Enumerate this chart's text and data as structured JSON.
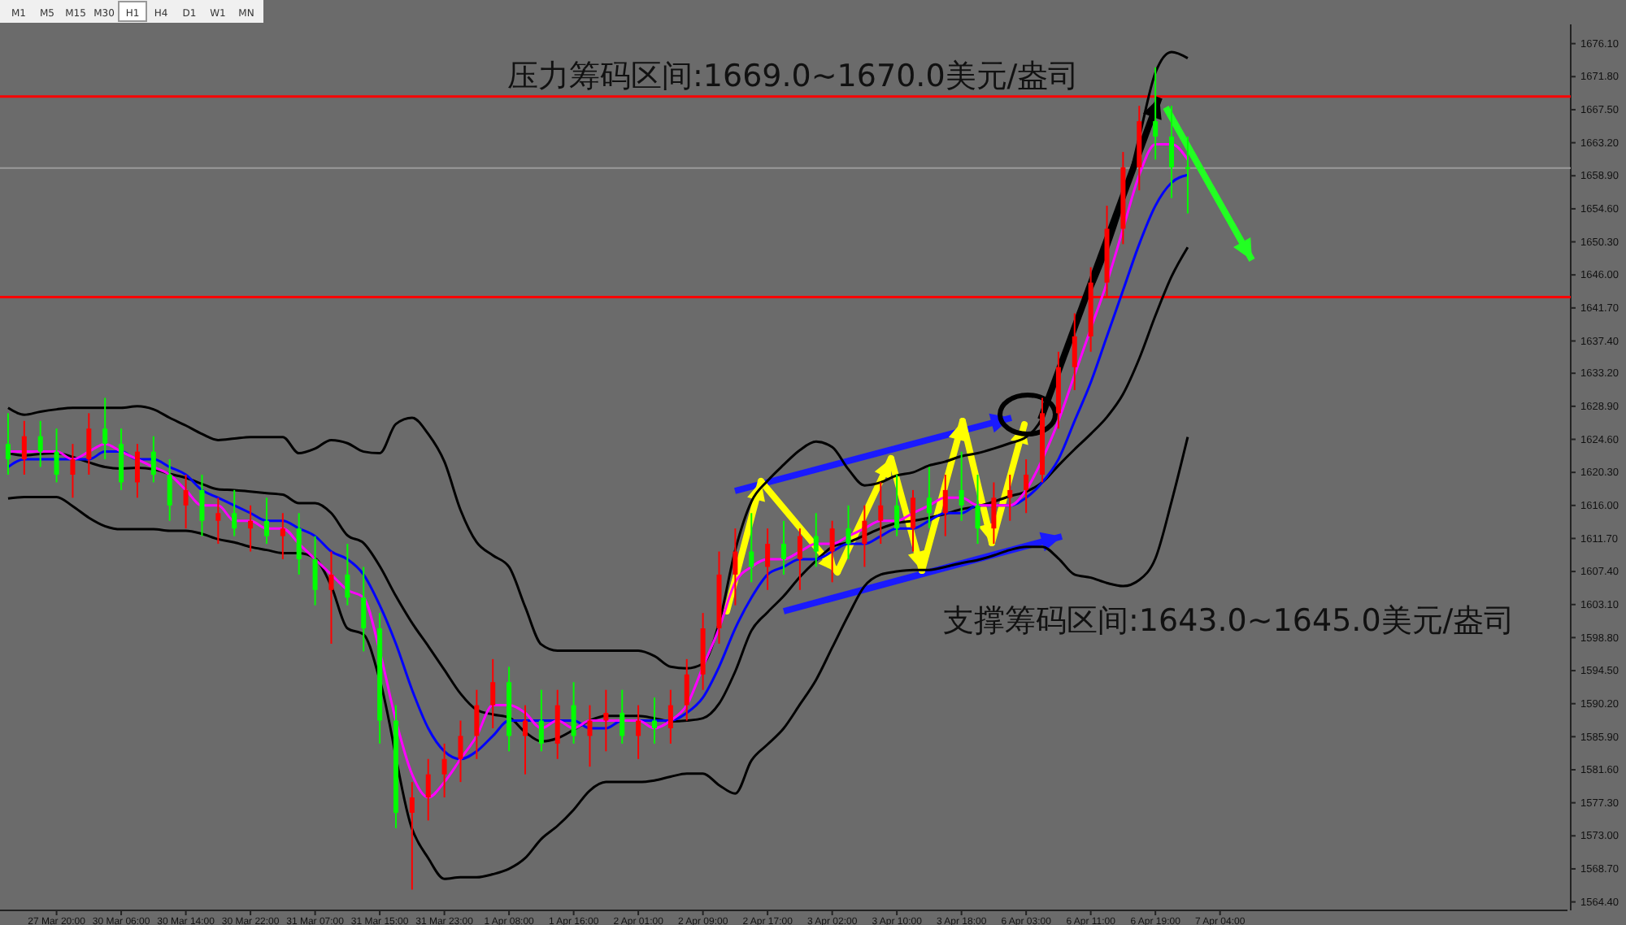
{
  "chart_data": {
    "type": "candlestick",
    "categories": [
      null,
      null,
      null,
      "27 Mar 20:00",
      null,
      null,
      null,
      "30 Mar 06:00",
      null,
      null,
      null,
      "30 Mar 14:00",
      null,
      null,
      null,
      "30 Mar 22:00",
      null,
      null,
      null,
      "31 Mar 07:00",
      null,
      null,
      null,
      "31 Mar 15:00",
      null,
      null,
      null,
      "31 Mar 23:00",
      null,
      null,
      null,
      "1 Apr 08:00",
      null,
      null,
      null,
      "1 Apr 16:00",
      null,
      null,
      null,
      "2 Apr 01:00",
      null,
      null,
      null,
      "2 Apr 09:00",
      null,
      null,
      null,
      "2 Apr 17:00",
      null,
      null,
      null,
      "3 Apr 02:00",
      null,
      null,
      null,
      "3 Apr 10:00",
      null,
      null,
      null,
      "3 Apr 18:00",
      null,
      null,
      null,
      "6 Apr 03:00",
      null,
      null,
      null,
      "6 Apr 11:00",
      null,
      null,
      null,
      "6 Apr 19:00",
      null,
      null,
      null,
      "7 Apr 04:00",
      null,
      null,
      null,
      null,
      null,
      null,
      null,
      null,
      null,
      null,
      null,
      null,
      null,
      null,
      null,
      null,
      null,
      null,
      null,
      null,
      null
    ],
    "ohlc": [
      [
        1624,
        1628,
        1620,
        1622
      ],
      [
        1622,
        1627,
        1620,
        1625
      ],
      [
        1625,
        1627,
        1621,
        1623
      ],
      [
        1623,
        1626,
        1619,
        1620
      ],
      [
        1620,
        1624,
        1617,
        1622
      ],
      [
        1622,
        1628,
        1620,
        1626
      ],
      [
        1626,
        1630,
        1622,
        1624
      ],
      [
        1624,
        1626,
        1618,
        1619
      ],
      [
        1619,
        1624,
        1617,
        1623
      ],
      [
        1623,
        1625,
        1619,
        1620
      ],
      [
        1620,
        1622,
        1614,
        1616
      ],
      [
        1616,
        1620,
        1613,
        1618
      ],
      [
        1618,
        1620,
        1612,
        1614
      ],
      [
        1614,
        1617,
        1611,
        1615
      ],
      [
        1615,
        1618,
        1612,
        1613
      ],
      [
        1613,
        1616,
        1610,
        1614
      ],
      [
        1614,
        1617,
        1611,
        1612
      ],
      [
        1612,
        1615,
        1609,
        1613
      ],
      [
        1613,
        1615,
        1607,
        1609
      ],
      [
        1609,
        1612,
        1603,
        1605
      ],
      [
        1605,
        1610,
        1598,
        1607
      ],
      [
        1607,
        1611,
        1603,
        1604
      ],
      [
        1604,
        1608,
        1597,
        1600
      ],
      [
        1600,
        1602,
        1585,
        1588
      ],
      [
        1588,
        1590,
        1574,
        1576
      ],
      [
        1576,
        1580,
        1566,
        1578
      ],
      [
        1578,
        1583,
        1575,
        1581
      ],
      [
        1581,
        1585,
        1578,
        1583
      ],
      [
        1583,
        1588,
        1580,
        1586
      ],
      [
        1586,
        1592,
        1583,
        1590
      ],
      [
        1590,
        1596,
        1587,
        1593
      ],
      [
        1593,
        1595,
        1584,
        1586
      ],
      [
        1586,
        1590,
        1581,
        1588
      ],
      [
        1588,
        1592,
        1584,
        1585
      ],
      [
        1585,
        1592,
        1583,
        1590
      ],
      [
        1590,
        1593,
        1585,
        1586
      ],
      [
        1586,
        1590,
        1582,
        1588
      ],
      [
        1588,
        1592,
        1584,
        1589
      ],
      [
        1589,
        1592,
        1585,
        1586
      ],
      [
        1586,
        1590,
        1583,
        1588
      ],
      [
        1588,
        1591,
        1585,
        1587
      ],
      [
        1587,
        1592,
        1585,
        1590
      ],
      [
        1590,
        1596,
        1588,
        1594
      ],
      [
        1594,
        1602,
        1592,
        1600
      ],
      [
        1600,
        1610,
        1598,
        1607
      ],
      [
        1607,
        1613,
        1603,
        1610
      ],
      [
        1610,
        1615,
        1606,
        1608
      ],
      [
        1608,
        1613,
        1605,
        1611
      ],
      [
        1611,
        1614,
        1607,
        1609
      ],
      [
        1609,
        1613,
        1605,
        1612
      ],
      [
        1612,
        1615,
        1608,
        1610
      ],
      [
        1610,
        1614,
        1606,
        1613
      ],
      [
        1613,
        1616,
        1609,
        1611
      ],
      [
        1611,
        1616,
        1608,
        1614
      ],
      [
        1614,
        1619,
        1611,
        1616
      ],
      [
        1616,
        1620,
        1612,
        1613
      ],
      [
        1613,
        1618,
        1610,
        1617
      ],
      [
        1617,
        1621,
        1613,
        1615
      ],
      [
        1615,
        1620,
        1612,
        1618
      ],
      [
        1618,
        1623,
        1614,
        1616
      ],
      [
        1616,
        1620,
        1611,
        1613
      ],
      [
        1613,
        1619,
        1611,
        1617
      ],
      [
        1617,
        1620,
        1614,
        1618
      ],
      [
        1618,
        1622,
        1615,
        1620
      ],
      [
        1620,
        1630,
        1619,
        1628
      ],
      [
        1628,
        1636,
        1626,
        1634
      ],
      [
        1634,
        1641,
        1631,
        1638
      ],
      [
        1638,
        1647,
        1636,
        1645
      ],
      [
        1645,
        1655,
        1643,
        1652
      ],
      [
        1652,
        1662,
        1650,
        1660
      ],
      [
        1660,
        1668,
        1657,
        1666
      ],
      [
        1666,
        1673,
        1661,
        1664
      ],
      [
        1664,
        1668,
        1656,
        1660
      ],
      [
        1660,
        1664,
        1654,
        1659.9
      ],
      null,
      null,
      null,
      null,
      null,
      null,
      null,
      null,
      null,
      null,
      null,
      null,
      null,
      null,
      null,
      null,
      null,
      null,
      null,
      null,
      null,
      null,
      null
    ],
    "colors": [
      "#00ff00",
      "#ff0000",
      "#00ff00",
      "#00ff00",
      "#ff0000",
      "#ff0000",
      "#00ff00",
      "#00ff00",
      "#ff0000",
      "#00ff00",
      "#00ff00",
      "#ff0000",
      "#00ff00",
      "#ff0000",
      "#00ff00",
      "#ff0000",
      "#00ff00",
      "#ff0000",
      "#00ff00",
      "#00ff00",
      "#ff0000",
      "#00ff00",
      "#00ff00",
      "#00ff00",
      "#00ff00",
      "#ff0000",
      "#ff0000",
      "#ff0000",
      "#ff0000",
      "#ff0000",
      "#ff0000",
      "#00ff00",
      "#ff0000",
      "#00ff00",
      "#ff0000",
      "#00ff00",
      "#ff0000",
      "#ff0000",
      "#00ff00",
      "#ff0000",
      "#00ff00",
      "#ff0000",
      "#ff0000",
      "#ff0000",
      "#ff0000",
      "#ff0000",
      "#00ff00",
      "#ff0000",
      "#00ff00",
      "#ff0000",
      "#00ff00",
      "#ff0000",
      "#00ff00",
      "#ff0000",
      "#ff0000",
      "#00ff00",
      "#ff0000",
      "#00ff00",
      "#ff0000",
      "#00ff00",
      "#00ff00",
      "#ff0000",
      "#ff0000",
      "#ff0000",
      "#ff0000",
      "#ff0000",
      "#ff0000",
      "#ff0000",
      "#ff0000",
      "#ff0000",
      "#ff0000",
      "#00ff00",
      "#00ff00",
      "#00ff00",
      null,
      null,
      null,
      null,
      null,
      null,
      null,
      null,
      null,
      null,
      null,
      null,
      null,
      null,
      null,
      null,
      null,
      null,
      null,
      null,
      null,
      null,
      null
    ],
    "series": [
      {
        "type": "line",
        "color": "#000000",
        "values": [
          1628.7,
          1627.8,
          1628.2,
          1628.5,
          1628.7,
          1628.7,
          1628.7,
          1628.7,
          1628.9,
          1628.5,
          1627.4,
          1626.4,
          1625.3,
          1624.5,
          1624.7,
          1624.9,
          1624.9,
          1624.9,
          1622.8,
          1623.4,
          1624.5,
          1624.1,
          1623.0,
          1622.8,
          1626.6,
          1627.4,
          1625.3,
          1621.7,
          1615.4,
          1611.2,
          1609.5,
          1608.0,
          1602.8,
          1597.9,
          1597.1,
          1597.1,
          1597.1,
          1597.1,
          1597.1,
          1597.1,
          1596.4,
          1595.0,
          1594.8,
          1595.4,
          1600.7,
          1610.2,
          1616.5,
          1619.2,
          1621.3,
          1623.2,
          1624.3,
          1623.6,
          1620.7,
          1618.6,
          1619.0,
          1619.9,
          1620.3,
          1621.2,
          1621.7,
          1622.4,
          1622.8,
          1623.4,
          1624.1,
          1624.9,
          1627.4,
          1633.3,
          1639.6,
          1643.9,
          1649.1,
          1655.5,
          1663.9,
          1672.3,
          1675.0,
          1674.2,
          null,
          null,
          null,
          null,
          null,
          null,
          null,
          null,
          null,
          null,
          null,
          null,
          null,
          null,
          null,
          null,
          null,
          null,
          null,
          null,
          null,
          null,
          null
        ]
      },
      {
        "type": "line",
        "color": "#000000",
        "values": [
          1622.8,
          1622.5,
          1622.7,
          1622.8,
          1622.3,
          1621.6,
          1621.0,
          1620.8,
          1620.9,
          1620.7,
          1620.1,
          1619.6,
          1618.8,
          1618.1,
          1618.0,
          1617.8,
          1617.6,
          1617.4,
          1616.3,
          1616.3,
          1615.0,
          1612.1,
          1611.1,
          1608.1,
          1604.2,
          1600.7,
          1597.7,
          1594.6,
          1591.5,
          1589.4,
          1588.8,
          1588.4,
          1586.5,
          1585.3,
          1585.7,
          1586.8,
          1588.0,
          1588.6,
          1588.6,
          1588.6,
          1588.3,
          1587.9,
          1588.0,
          1588.3,
          1590.2,
          1594.4,
          1599.7,
          1602.1,
          1604.2,
          1606.7,
          1608.8,
          1610.6,
          1611.2,
          1612.1,
          1613.0,
          1613.7,
          1614.0,
          1614.4,
          1614.9,
          1615.5,
          1615.9,
          1616.5,
          1617.2,
          1617.8,
          1619.0,
          1621.2,
          1623.3,
          1625.3,
          1627.5,
          1630.5,
          1635.1,
          1640.7,
          1645.8,
          1649.6,
          null,
          null,
          null,
          null,
          null,
          null,
          null,
          null,
          null,
          null,
          null,
          null,
          null,
          null,
          null,
          null,
          null,
          null,
          null,
          null,
          null,
          null,
          null
        ]
      },
      {
        "type": "line",
        "color": "#000000",
        "values": [
          1616.9,
          1617.1,
          1617.1,
          1617.1,
          1615.9,
          1614.4,
          1613.3,
          1612.9,
          1612.9,
          1612.9,
          1612.7,
          1612.7,
          1612.3,
          1611.6,
          1611.2,
          1610.6,
          1610.2,
          1609.8,
          1609.8,
          1609.1,
          1605.5,
          1600.0,
          1599.2,
          1593.3,
          null,
          1573.9,
          1570.1,
          1567.4,
          1567.6,
          1567.6,
          1568.0,
          1568.7,
          1570.1,
          1572.6,
          1574.3,
          1576.4,
          1578.9,
          1580.0,
          1580.0,
          1580.0,
          1580.2,
          1580.7,
          1581.1,
          1581.1,
          1579.6,
          1578.5,
          1582.8,
          1584.9,
          1587.0,
          1590.1,
          1593.3,
          1597.5,
          1601.7,
          1605.5,
          1607.0,
          1607.4,
          1607.6,
          1607.6,
          1608.0,
          1608.5,
          1608.9,
          1609.5,
          1610.2,
          1610.6,
          1610.6,
          1609.1,
          1607.0,
          1606.6,
          1605.9,
          1605.5,
          1606.3,
          1609.1,
          1616.5,
          1624.9,
          null,
          null,
          null,
          null,
          null,
          null,
          null,
          null,
          null,
          null,
          null,
          null,
          null,
          null,
          null,
          null,
          null,
          null,
          null,
          null,
          null,
          null,
          null
        ]
      },
      {
        "type": "line",
        "color": "#0000ff",
        "values": [
          1621,
          1622,
          1622,
          1622,
          1622,
          1622,
          1623,
          1623,
          1622,
          1622,
          1621,
          1620,
          1618,
          1617,
          1616,
          1615,
          1614,
          1614,
          1613,
          1612,
          1610,
          1609,
          1607,
          1603,
          1598,
          1592,
          1587,
          1584,
          1583,
          1584,
          1586,
          1588,
          1588,
          1588,
          1588,
          1588,
          1587,
          1587,
          1588,
          1588,
          1588,
          1588,
          1589,
          1591,
          1595,
          1600,
          1604,
          1607,
          1608,
          1609,
          1609,
          1610,
          1611,
          1611,
          1612,
          1613,
          1613,
          1614,
          1615,
          1615,
          1616,
          null,
          1616,
          1617,
          1619,
          1622,
          1627,
          1632,
          1638,
          1644,
          1650,
          1655,
          1658,
          1659,
          null,
          null,
          null,
          null,
          null,
          null,
          null,
          null,
          null,
          null,
          null,
          null,
          null,
          null,
          null,
          null,
          null,
          null,
          null,
          null,
          null,
          null,
          null
        ]
      },
      {
        "type": "line",
        "color": "#ff00ff",
        "values": [
          1623,
          1623,
          1623,
          1623,
          1622,
          1623,
          1624,
          1623,
          1622,
          1621,
          1620,
          1618,
          1616,
          1616,
          1614,
          1614,
          1613,
          1613,
          1611,
          1609,
          1607,
          1605,
          1604,
          1597,
          1588,
          1581,
          1578,
          1580,
          1583,
          1586,
          1590,
          1590,
          1589,
          1587,
          1588,
          1587,
          1588,
          1588,
          1588,
          1588,
          1587,
          1588,
          1590,
          1595,
          1600,
          1606,
          1608,
          1609,
          1609,
          1610,
          1611,
          1611,
          1612,
          1613,
          1614,
          1614,
          1615,
          1616,
          1617,
          1617,
          1616,
          1616,
          1616,
          1618,
          1622,
          1627,
          1633,
          1639,
          1645,
          1652,
          1659,
          1663,
          1663,
          1661,
          null,
          null,
          null,
          null,
          null,
          null,
          null,
          null,
          null,
          null,
          null,
          null,
          null,
          null,
          null,
          null,
          null,
          null,
          null,
          null,
          null,
          null,
          null
        ]
      }
    ],
    "ylim": [
      1563.3,
      1678.6
    ],
    "yticks": [
      {
        "value": 1676.1,
        "label": "1676.10"
      },
      {
        "value": 1671.8,
        "label": "1671.80"
      },
      {
        "value": 1667.5,
        "label": "1667.50"
      },
      {
        "value": 1663.2,
        "label": "1663.20"
      },
      {
        "value": 1658.9,
        "label": "1658.90"
      },
      {
        "value": 1654.6,
        "label": "1654.60"
      },
      {
        "value": 1650.3,
        "label": "1650.30"
      },
      {
        "value": 1646,
        "label": "1646.00"
      },
      {
        "value": 1641.7,
        "label": "1641.70"
      },
      {
        "value": 1637.4,
        "label": "1637.40"
      },
      {
        "value": 1633.2,
        "label": "1633.20"
      },
      {
        "value": 1628.9,
        "label": "1628.90"
      },
      {
        "value": 1624.6,
        "label": "1624.60"
      },
      {
        "value": 1620.3,
        "label": "1620.30"
      },
      {
        "value": 1616,
        "label": "1616.00"
      },
      {
        "value": 1611.7,
        "label": "1611.70"
      },
      {
        "value": 1607.4,
        "label": "1607.40"
      },
      {
        "value": 1603.1,
        "label": "1603.10"
      },
      {
        "value": 1598.8,
        "label": "1598.80"
      },
      {
        "value": 1594.5,
        "label": "1594.50"
      },
      {
        "value": 1590.2,
        "label": "1590.20"
      },
      {
        "value": 1585.9,
        "label": "1585.90"
      },
      {
        "value": 1581.6,
        "label": "1581.60"
      },
      {
        "value": 1577.3,
        "label": "1577.30"
      },
      {
        "value": 1573,
        "label": "1573.00"
      },
      {
        "value": 1568.7,
        "label": "1568.70"
      },
      {
        "value": 1564.4,
        "label": "1564.40"
      }
    ],
    "ref_lines": [
      {
        "axis": "y",
        "value": 1669.2,
        "color": "#ff0000"
      },
      {
        "axis": "y",
        "value": 1659.9,
        "color": "#9a9a9a"
      },
      {
        "axis": "y",
        "value": 1643.1,
        "color": "#ff0000"
      }
    ],
    "annotations": [
      "压力筹码区间:1669.0~1670.0美元/盎司",
      "支撑筹码区间:1643.0~1645.0美元/盎司",
      "M1",
      "M5",
      "M15",
      "M30",
      "H1",
      "H4",
      "D1",
      "W1",
      "MN"
    ]
  }
}
